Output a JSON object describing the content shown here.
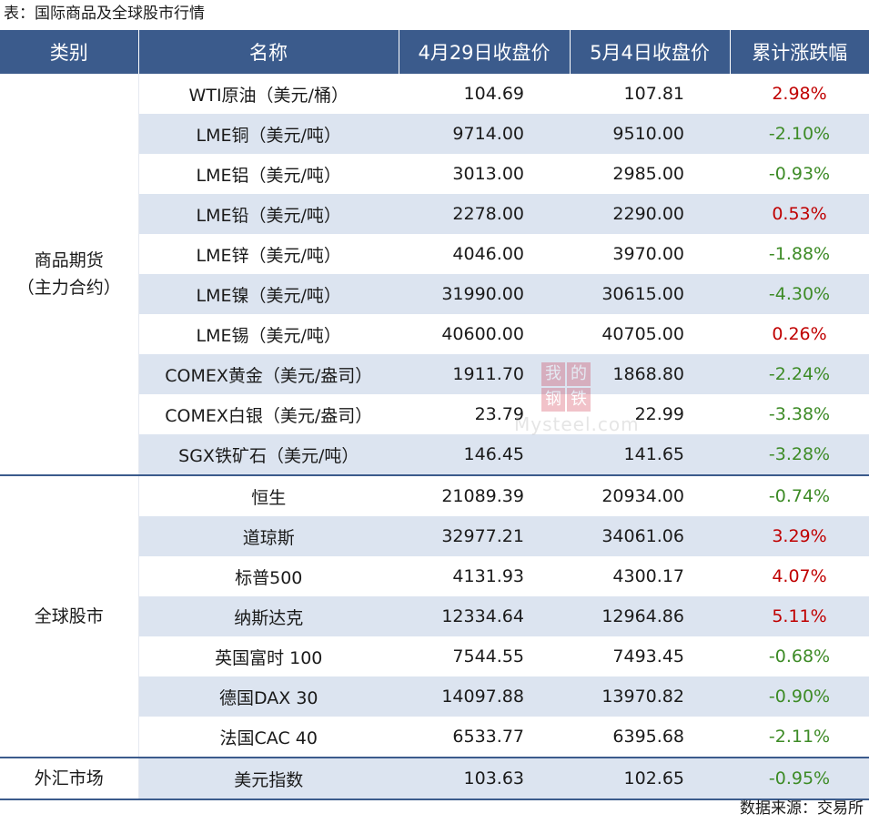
{
  "caption": "表：国际商品及全球股市行情",
  "headers": [
    "类别",
    "名称",
    "4月29日收盘价",
    "5月4日收盘价",
    "累计涨跌幅"
  ],
  "categories": {
    "commodity_line1": "商品期货",
    "commodity_line2": "（主力合约）",
    "stocks": "全球股市",
    "fx": "外汇市场"
  },
  "rows": [
    {
      "name": "WTI原油（美元/桶）",
      "apr29": "104.69",
      "may4": "107.81",
      "change": "2.98%"
    },
    {
      "name": "LME铜（美元/吨）",
      "apr29": "9714.00",
      "may4": "9510.00",
      "change": "-2.10%"
    },
    {
      "name": "LME铝（美元/吨）",
      "apr29": "3013.00",
      "may4": "2985.00",
      "change": "-0.93%"
    },
    {
      "name": "LME铅（美元/吨）",
      "apr29": "2278.00",
      "may4": "2290.00",
      "change": "0.53%"
    },
    {
      "name": "LME锌（美元/吨）",
      "apr29": "4046.00",
      "may4": "3970.00",
      "change": "-1.88%"
    },
    {
      "name": "LME镍（美元/吨）",
      "apr29": "31990.00",
      "may4": "30615.00",
      "change": "-4.30%"
    },
    {
      "name": "LME锡（美元/吨）",
      "apr29": "40600.00",
      "may4": "40705.00",
      "change": "0.26%"
    },
    {
      "name": "COMEX黄金（美元/盎司）",
      "apr29": "1911.70",
      "may4": "1868.80",
      "change": "-2.24%"
    },
    {
      "name": "COMEX白银（美元/盎司）",
      "apr29": "23.79",
      "may4": "22.99",
      "change": "-3.38%"
    },
    {
      "name": "SGX铁矿石（美元/吨）",
      "apr29": "146.45",
      "may4": "141.65",
      "change": "-3.28%"
    },
    {
      "name": "恒生",
      "apr29": "21089.39",
      "may4": "20934.00",
      "change": "-0.74%"
    },
    {
      "name": "道琼斯",
      "apr29": "32977.21",
      "may4": "34061.06",
      "change": "3.29%"
    },
    {
      "name": "标普500",
      "apr29": "4131.93",
      "may4": "4300.17",
      "change": "4.07%"
    },
    {
      "name": "纳斯达克",
      "apr29": "12334.64",
      "may4": "12964.86",
      "change": "5.11%"
    },
    {
      "name": "英国富时 100",
      "apr29": "7544.55",
      "may4": "7493.45",
      "change": "-0.68%"
    },
    {
      "name": "德国DAX 30",
      "apr29": "14097.88",
      "may4": "13970.82",
      "change": "-0.90%"
    },
    {
      "name": "法国CAC 40",
      "apr29": "6533.77",
      "may4": "6395.68",
      "change": "-2.11%"
    },
    {
      "name": "美元指数",
      "apr29": "103.63",
      "may4": "102.65",
      "change": "-0.95%"
    }
  ],
  "colors": {
    "header_bg": "#3b5b8c",
    "stripe": "#dce4f0",
    "up": "#c00000",
    "down": "#3d8b26"
  },
  "watermark": {
    "line1": "我的",
    "line2": "钢铁",
    "url": "Mysteel.com"
  },
  "footer": "数据来源：交易所"
}
